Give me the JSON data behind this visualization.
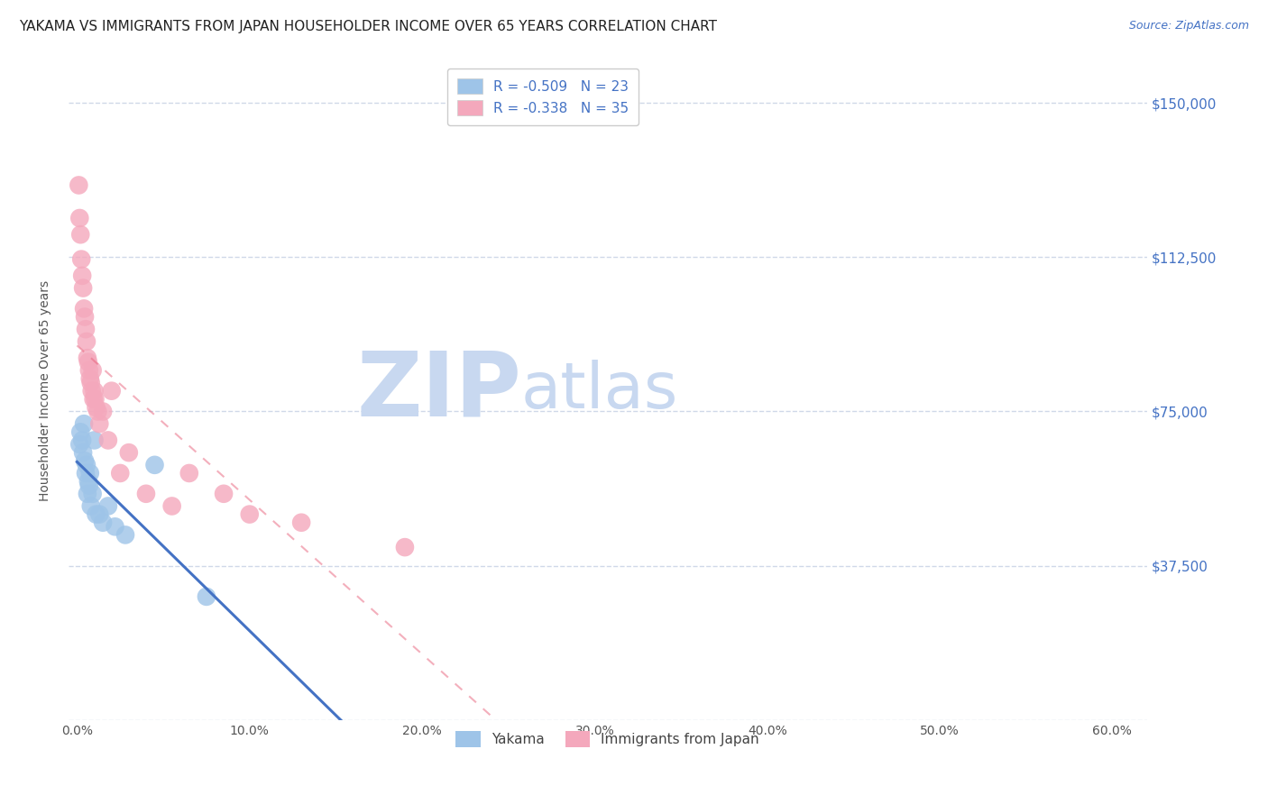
{
  "title": "YAKAMA VS IMMIGRANTS FROM JAPAN HOUSEHOLDER INCOME OVER 65 YEARS CORRELATION CHART",
  "source": "Source: ZipAtlas.com",
  "ylabel": "Householder Income Over 65 years",
  "xlabel_ticks": [
    "0.0%",
    "10.0%",
    "20.0%",
    "30.0%",
    "40.0%",
    "50.0%",
    "60.0%"
  ],
  "xlabel_vals": [
    0,
    10,
    20,
    30,
    40,
    50,
    60
  ],
  "ytick_vals": [
    0,
    37500,
    75000,
    112500,
    150000
  ],
  "ytick_labels_right": [
    "",
    "$37,500",
    "$75,000",
    "$112,500",
    "$150,000"
  ],
  "ylim": [
    0,
    160000
  ],
  "xlim": [
    -0.5,
    62
  ],
  "watermark_zip": "ZIP",
  "watermark_atlas": "atlas",
  "blue_line_color": "#4472c4",
  "pink_line_color": "#e8607a",
  "blue_scatter_color": "#9ec4e8",
  "pink_scatter_color": "#f4a8bc",
  "grid_color": "#d0d8e8",
  "background_color": "#ffffff",
  "title_fontsize": 11,
  "source_fontsize": 9,
  "watermark_color": "#c8d8f0",
  "right_ytick_color": "#4472c4",
  "legend_r1": "R = -0.509",
  "legend_n1": "N = 23",
  "legend_r2": "R = -0.338",
  "legend_n2": "N = 35",
  "yakama_x": [
    0.15,
    0.2,
    0.3,
    0.35,
    0.4,
    0.45,
    0.5,
    0.55,
    0.6,
    0.65,
    0.7,
    0.75,
    0.8,
    0.9,
    1.0,
    1.1,
    1.3,
    1.5,
    1.8,
    2.2,
    2.8,
    4.5,
    7.5
  ],
  "yakama_y": [
    67000,
    70000,
    68000,
    65000,
    72000,
    63000,
    60000,
    62000,
    55000,
    58000,
    57000,
    60000,
    52000,
    55000,
    68000,
    50000,
    50000,
    48000,
    52000,
    47000,
    45000,
    62000,
    30000
  ],
  "japan_x": [
    0.1,
    0.15,
    0.2,
    0.25,
    0.3,
    0.35,
    0.4,
    0.45,
    0.5,
    0.55,
    0.6,
    0.65,
    0.7,
    0.75,
    0.8,
    0.85,
    0.9,
    0.95,
    1.0,
    1.05,
    1.1,
    1.2,
    1.3,
    1.5,
    1.8,
    2.0,
    2.5,
    3.0,
    4.0,
    5.5,
    6.5,
    8.5,
    10.0,
    13.0,
    19.0
  ],
  "japan_y": [
    130000,
    122000,
    118000,
    112000,
    108000,
    105000,
    100000,
    98000,
    95000,
    92000,
    88000,
    87000,
    85000,
    83000,
    82000,
    80000,
    85000,
    78000,
    80000,
    78000,
    76000,
    75000,
    72000,
    75000,
    68000,
    80000,
    60000,
    65000,
    55000,
    52000,
    60000,
    55000,
    50000,
    48000,
    42000
  ],
  "bottom_legend_yakama": "Yakama",
  "bottom_legend_japan": "Immigrants from Japan"
}
